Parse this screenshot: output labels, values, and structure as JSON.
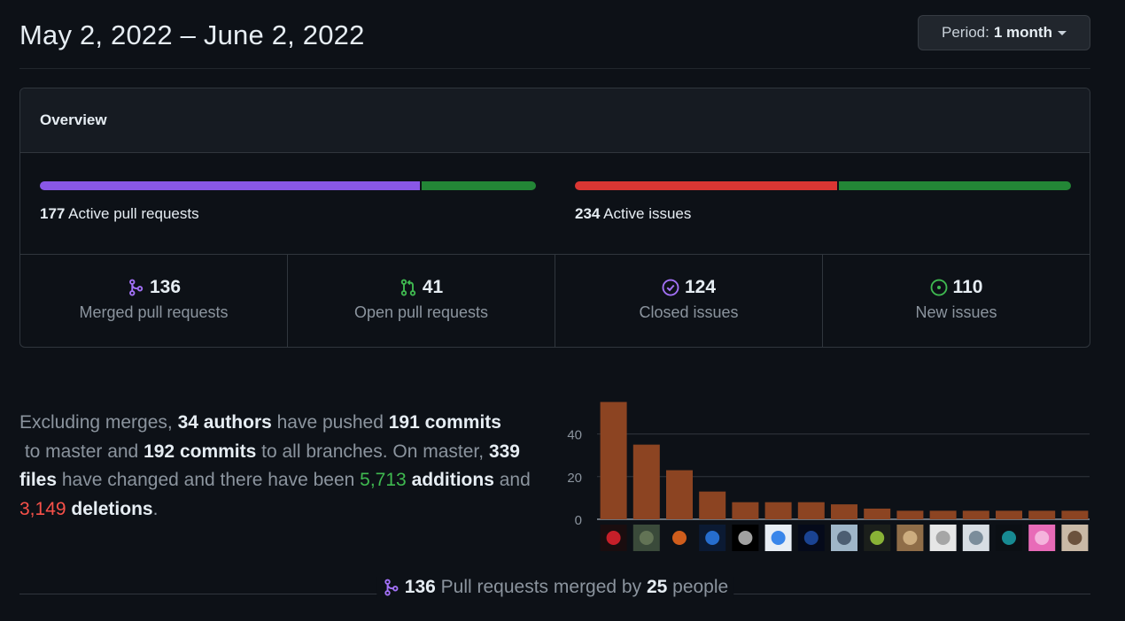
{
  "header": {
    "date_range": "May 2, 2022 – June 2, 2022",
    "period_label": "Period:",
    "period_value": "1 month"
  },
  "overview": {
    "title": "Overview",
    "pull_requests": {
      "count": "177",
      "label": "Active pull requests",
      "merged_fraction": 0.768,
      "colors": {
        "merged": "#8957e5",
        "open": "#238636"
      }
    },
    "issues": {
      "count": "234",
      "label": "Active issues",
      "closed_fraction": 0.53,
      "colors": {
        "closed": "#da3633",
        "new": "#238636"
      }
    },
    "stats": [
      {
        "value": "136",
        "label": "Merged pull requests",
        "icon": "git-merge-icon",
        "color": "#a371f7"
      },
      {
        "value": "41",
        "label": "Open pull requests",
        "icon": "git-pull-request-icon",
        "color": "#3fb950"
      },
      {
        "value": "124",
        "label": "Closed issues",
        "icon": "issue-closed-icon",
        "color": "#a371f7"
      },
      {
        "value": "110",
        "label": "New issues",
        "icon": "issue-opened-icon",
        "color": "#3fb950"
      }
    ]
  },
  "summary": {
    "t1": "Excluding merges, ",
    "authors": "34 authors",
    "t2": " have pushed ",
    "commits_master": "191 commits",
    "t3": " to master and ",
    "commits_all": "192 commits",
    "t4": " to all branches. On master, ",
    "files": "339 files",
    "t5": " have changed and there have been ",
    "additions_num": "5,713",
    "additions_word": "additions",
    "t6": " and ",
    "deletions_num": "3,149",
    "deletions_word": "deletions",
    "t7": "."
  },
  "chart_data": {
    "type": "bar",
    "categories": [
      "author-1",
      "author-2",
      "author-3",
      "author-4",
      "author-5",
      "author-6",
      "author-7",
      "author-8",
      "author-9",
      "author-10",
      "author-11",
      "author-12",
      "author-13",
      "author-14",
      "author-15"
    ],
    "values": [
      55,
      35,
      23,
      13,
      8,
      8,
      8,
      7,
      5,
      4,
      4,
      4,
      4,
      4,
      4
    ],
    "yticks": [
      "0",
      "20",
      "40"
    ],
    "ylim": [
      0,
      56
    ],
    "bar_color": "#8c4422",
    "grid": true
  },
  "avatars": [
    {
      "icon": "red-chevron-avatar-icon",
      "bg": "#1a0d0f",
      "fg": "#e5232e"
    },
    {
      "icon": "camo-avatar-icon",
      "bg": "#3a4a3a",
      "fg": "#6a7a5a"
    },
    {
      "icon": "lambda-avatar-icon",
      "bg": "#0d1117",
      "fg": "#f26b1d"
    },
    {
      "icon": "k-logo-avatar-icon",
      "bg": "#0b1a33",
      "fg": "#2b7de9"
    },
    {
      "icon": "mask-avatar-icon",
      "bg": "#000000",
      "fg": "#bdbdbd"
    },
    {
      "icon": "cartoon-face-avatar-icon",
      "bg": "#e8eef5",
      "fg": "#1a73e8"
    },
    {
      "icon": "hooded-figure-avatar-icon",
      "bg": "#050a1a",
      "fg": "#1f4ea8"
    },
    {
      "icon": "photo-avatar-icon",
      "bg": "#9fb6c8",
      "fg": "#3d4f63"
    },
    {
      "icon": "pixel-art-avatar-icon",
      "bg": "#1b1f1b",
      "fg": "#9ccc3b"
    },
    {
      "icon": "hat-character-avatar-icon",
      "bg": "#8f6d48",
      "fg": "#d8b88a"
    },
    {
      "icon": "github-octocat-avatar-icon",
      "bg": "#e6e6e6",
      "fg": "#9a9a9a"
    },
    {
      "icon": "portrait-avatar-icon",
      "bg": "#d7dde3",
      "fg": "#6b7f8e"
    },
    {
      "icon": "teal-figure-avatar-icon",
      "bg": "#0b0f14",
      "fg": "#1aa0a8"
    },
    {
      "icon": "anime-avatar-icon",
      "bg": "#e86bb8",
      "fg": "#f7c1e3"
    },
    {
      "icon": "cat-avatar-icon",
      "bg": "#c9b9a6",
      "fg": "#5a3f2a"
    }
  ],
  "footer": {
    "count": "136",
    "t1": " Pull requests merged by ",
    "people": "25",
    "t2": " people"
  }
}
